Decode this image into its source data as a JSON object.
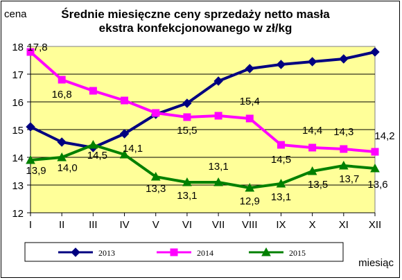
{
  "chart_data": {
    "type": "line",
    "title": "Średnie miesięczne ceny sprzedaży netto masła\nekstra konfekcjonowanego w zł/kg",
    "ylabel": "cena",
    "xlabel": "miesiąc",
    "categories": [
      "I",
      "II",
      "III",
      "IV",
      "V",
      "VI",
      "VII",
      "VIII",
      "IX",
      "X",
      "XI",
      "XII"
    ],
    "ylim": [
      12,
      18
    ],
    "yticks": [
      12,
      13,
      14,
      15,
      16,
      17,
      18
    ],
    "grid": true,
    "legend_position": "bottom",
    "plot_background": "#FFFF99",
    "series": [
      {
        "name": "2013",
        "color": "#000080",
        "marker": "diamond",
        "values": [
          15.1,
          14.55,
          14.35,
          14.85,
          15.55,
          15.95,
          16.75,
          17.2,
          17.35,
          17.45,
          17.55,
          17.8
        ],
        "labels": []
      },
      {
        "name": "2014",
        "color": "#FF00FF",
        "marker": "square",
        "values": [
          17.8,
          16.8,
          16.4,
          16.05,
          15.6,
          15.45,
          15.5,
          15.4,
          14.45,
          14.35,
          14.3,
          14.2
        ],
        "labels": [
          "17,8",
          "16,8",
          "",
          "",
          "",
          "15,5",
          "",
          "15,4",
          "14,5",
          "14,4",
          "14,3",
          "14,2"
        ]
      },
      {
        "name": "2015",
        "color": "#008000",
        "marker": "triangle",
        "values": [
          13.9,
          14.0,
          14.45,
          14.1,
          13.3,
          13.1,
          13.1,
          12.9,
          13.05,
          13.5,
          13.7,
          13.6
        ],
        "labels": [
          "13,9",
          "14,0",
          "14,5",
          "14,1",
          "13,3",
          "13,1",
          "13,1",
          "12,9",
          "13,1",
          "13,5",
          "13,7",
          "13,6"
        ]
      }
    ]
  }
}
